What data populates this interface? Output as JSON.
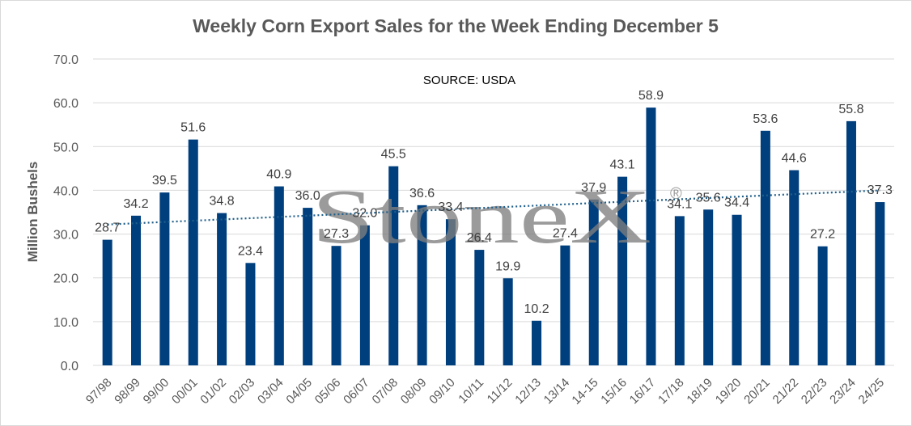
{
  "chart_data": {
    "type": "bar",
    "title": "Weekly Corn Export Sales for the Week Ending December 5",
    "annotation": "SOURCE: USDA",
    "watermark": "StoneX",
    "watermark_mark": "®",
    "xlabel": "",
    "ylabel": "Million Bushels",
    "ylim": [
      0,
      70
    ],
    "yticks": [
      "0.0",
      "10.0",
      "20.0",
      "30.0",
      "40.0",
      "50.0",
      "60.0",
      "70.0"
    ],
    "grid": true,
    "legend": "none",
    "bar_color": "#003f7d",
    "trendline": {
      "type": "linear",
      "style": "dotted",
      "color": "#1f5f8b"
    },
    "categories": [
      "97/98",
      "98/99",
      "99/00",
      "00/01",
      "01/02",
      "02/03",
      "03/04",
      "04/05",
      "05/06",
      "06/07",
      "07/08",
      "08/09",
      "09/10",
      "10/11",
      "11/12",
      "12/13",
      "13/14",
      "14-15",
      "15/16",
      "16/17",
      "17/18",
      "18/19",
      "19/20",
      "20/21",
      "21/22",
      "22/23",
      "23/24",
      "24/25"
    ],
    "values": [
      28.7,
      34.2,
      39.5,
      51.6,
      34.8,
      23.4,
      40.9,
      36.0,
      27.3,
      32.0,
      45.5,
      36.6,
      33.4,
      26.4,
      19.9,
      10.2,
      27.4,
      37.9,
      43.1,
      58.9,
      34.1,
      35.6,
      34.4,
      53.6,
      44.6,
      27.2,
      55.8,
      37.3
    ],
    "data_labels": [
      "28.7",
      "34.2",
      "39.5",
      "51.6",
      "34.8",
      "23.4",
      "40.9",
      "36.0",
      "27.3",
      "32.0",
      "45.5",
      "36.6",
      "33.4",
      "26.4",
      "19.9",
      "10.2",
      "27.4",
      "37.9",
      "43.1",
      "58.9",
      "34.1",
      "35.6",
      "34.4",
      "53.6",
      "44.6",
      "27.2",
      "55.8",
      "37.3"
    ]
  }
}
